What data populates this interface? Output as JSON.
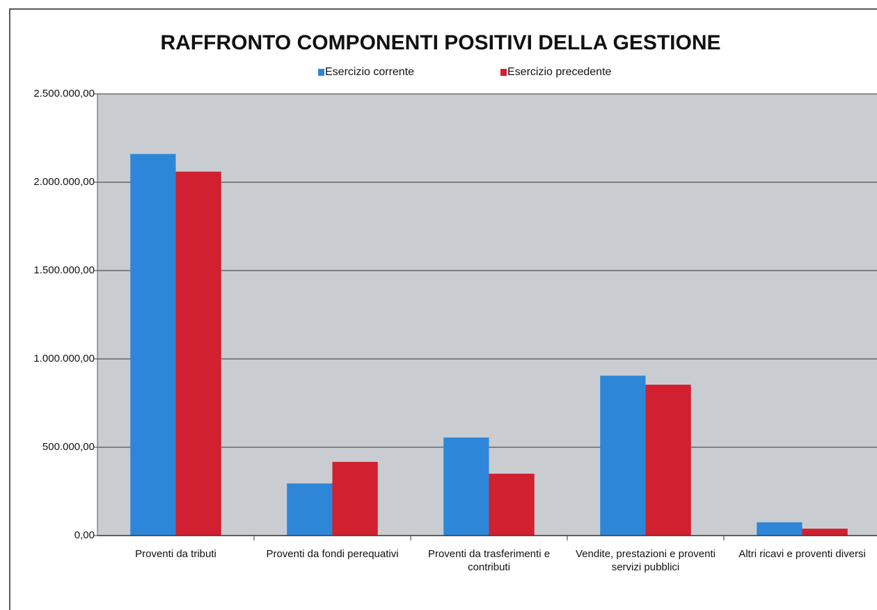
{
  "chart_data": {
    "type": "bar",
    "title": "RAFFRONTO COMPONENTI POSITIVI DELLA GESTIONE",
    "categories": [
      "Proventi da tributi",
      "Proventi da fondi perequativi",
      "Proventi da trasferimenti e contributi",
      "Vendite, prestazioni e proventi servizi pubblici",
      "Altri ricavi e proventi diversi"
    ],
    "series": [
      {
        "name": "Esercizio corrente",
        "color": "#2e86d8",
        "values": [
          2160000,
          295000,
          555000,
          905000,
          75000
        ]
      },
      {
        "name": "Esercizio precedente",
        "color": "#d1202f",
        "values": [
          2060000,
          417000,
          350000,
          854000,
          39000
        ]
      }
    ],
    "ylim": [
      0,
      2500000
    ],
    "yticks": [
      {
        "value": 0,
        "label": "0,00"
      },
      {
        "value": 500000,
        "label": "500.000,00"
      },
      {
        "value": 1000000,
        "label": "1.000.000,00"
      },
      {
        "value": 1500000,
        "label": "1.500.000,00"
      },
      {
        "value": 2000000,
        "label": "2.000.000,00"
      },
      {
        "value": 2500000,
        "label": "2.500.000,00"
      }
    ],
    "grid": true,
    "legend": "top"
  }
}
